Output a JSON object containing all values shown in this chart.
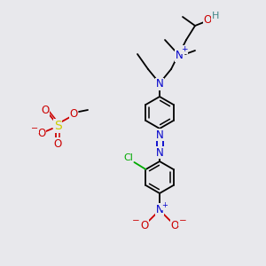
{
  "background_color": "#e8e8ec",
  "fig_width": 3.0,
  "fig_height": 3.0,
  "dpi": 100,
  "colors": {
    "C": "#000000",
    "N": "#0000cc",
    "O": "#cc0000",
    "S": "#cccc00",
    "Cl": "#00aa00",
    "H": "#448888"
  },
  "lw": 1.3
}
